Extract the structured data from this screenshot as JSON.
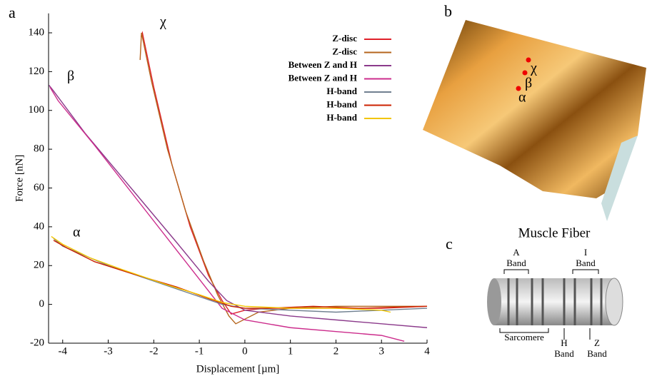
{
  "chart_data": {
    "type": "line",
    "xlabel": "Displacement [µm]",
    "ylabel": "Force [nN]",
    "xlim": [
      -4.31,
      4
    ],
    "ylim": [
      -20,
      150
    ],
    "xticks": [
      -4,
      -3,
      -2,
      -1,
      0,
      1,
      2,
      3,
      4
    ],
    "yticks": [
      -20,
      0,
      20,
      40,
      60,
      80,
      100,
      120,
      140
    ],
    "annotations": [
      "χ",
      "β",
      "α"
    ],
    "series": [
      {
        "name": "Z-disc",
        "color": "#e0202a",
        "x": [
          -2.28,
          -2.25,
          -2.0,
          -1.6,
          -1.2,
          -0.8,
          -0.5,
          -0.3,
          0,
          0.5,
          1,
          2,
          3,
          4
        ],
        "values": [
          138,
          140,
          112,
          72,
          40,
          15,
          2,
          -5,
          -3,
          -2,
          -2,
          -2,
          -2,
          -1
        ]
      },
      {
        "name": "Z-disc",
        "color": "#b5651d",
        "x": [
          -2.3,
          -2.27,
          -2.05,
          -1.7,
          -1.3,
          -0.9,
          -0.6,
          -0.35,
          -0.2,
          0.3,
          1,
          2,
          3,
          4
        ],
        "values": [
          126,
          140,
          115,
          80,
          48,
          22,
          5,
          -6,
          -10,
          -4,
          -2,
          -1,
          -1,
          -1
        ]
      },
      {
        "name": "Between Z and H",
        "color": "#8b3a8b",
        "x": [
          -4.3,
          -4.2,
          -3.5,
          -2.5,
          -1.5,
          -0.8,
          -0.4,
          0,
          1,
          2,
          3,
          4
        ],
        "values": [
          113,
          110,
          88,
          60,
          32,
          12,
          2,
          -3,
          -6,
          -8,
          -10,
          -12
        ]
      },
      {
        "name": "Between Z and H",
        "color": "#cc2c8c",
        "x": [
          -4.28,
          -4.1,
          -3.3,
          -2.3,
          -1.4,
          -0.9,
          -0.5,
          0,
          1,
          2,
          3,
          3.5
        ],
        "values": [
          112,
          105,
          82,
          52,
          25,
          10,
          -2,
          -8,
          -12,
          -14,
          -16,
          -19
        ]
      },
      {
        "name": "H-band",
        "color": "#708090",
        "x": [
          -4.2,
          -4.0,
          -3.5,
          -3,
          -2,
          -1,
          -0.5,
          0,
          1,
          2,
          3,
          4
        ],
        "values": [
          34,
          30,
          25,
          20,
          12,
          4,
          0,
          -2,
          -3,
          -4,
          -3,
          -2
        ]
      },
      {
        "name": "H-band",
        "color": "#cc2200",
        "x": [
          -4.2,
          -3.9,
          -3.3,
          -2.5,
          -1.5,
          -0.8,
          -0.3,
          0,
          0.5,
          1.5,
          2.5,
          4
        ],
        "values": [
          33,
          29,
          22,
          16,
          9,
          3,
          -1,
          -2,
          -2,
          -1,
          -2,
          -1
        ]
      },
      {
        "name": "H-band",
        "color": "#f2c500",
        "x": [
          -4.25,
          -4.0,
          -3.4,
          -2.7,
          -1.7,
          -1,
          -0.5,
          0,
          1,
          2,
          3,
          3.2
        ],
        "values": [
          35,
          31,
          24,
          18,
          10,
          5,
          1,
          -1,
          -2,
          -2,
          -3,
          -4
        ]
      }
    ]
  },
  "panels": {
    "labels": [
      "a",
      "b",
      "c"
    ],
    "afm_points": [
      "χ",
      "β",
      "α"
    ],
    "fiber": {
      "title": "Muscle Fiber",
      "a_band": "A\nBand",
      "i_band": "I\nBand",
      "sarcomere": "Sarcomere",
      "h_band": "H\nBand",
      "z_band": "Z\nBand"
    }
  }
}
